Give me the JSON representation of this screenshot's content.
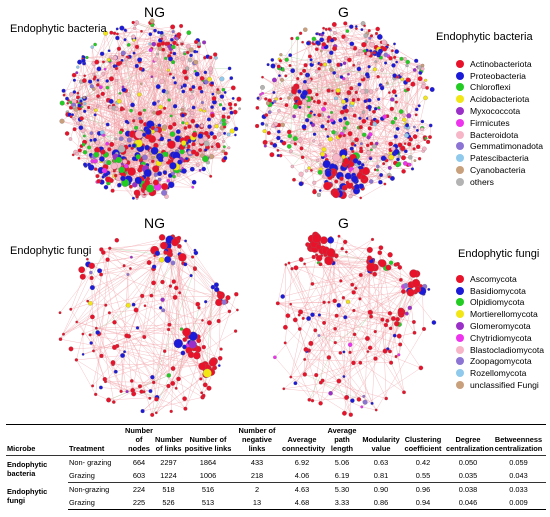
{
  "panels": {
    "bacteria": {
      "section_label": "Endophytic bacteria",
      "left_title": "NG",
      "right_title": "G",
      "legend_items": [
        {
          "label": "Actinobacteriota",
          "color": "#e8132a"
        },
        {
          "label": "Proteobacteria",
          "color": "#1a1ad8"
        },
        {
          "label": "Chloroflexi",
          "color": "#22cc22"
        },
        {
          "label": "Acidobacteriota",
          "color": "#f2e614"
        },
        {
          "label": "Myxococcota",
          "color": "#9b30c8"
        },
        {
          "label": "Firmicutes",
          "color": "#ee33ee"
        },
        {
          "label": "Bacteroidota",
          "color": "#f7b6c8"
        },
        {
          "label": "Gemmatimonadota",
          "color": "#8c74d4"
        },
        {
          "label": "Patescibacteria",
          "color": "#8fc9ec"
        },
        {
          "label": "Cyanobacteria",
          "color": "#c9a07c"
        },
        {
          "label": "others",
          "color": "#b3b3b3"
        }
      ]
    },
    "fungi": {
      "section_label": "Endophytic fungi",
      "left_title": "NG",
      "right_title": "G",
      "legend_items": [
        {
          "label": "Ascomycota",
          "color": "#e8132a"
        },
        {
          "label": "Basidiomycota",
          "color": "#1a1ad8"
        },
        {
          "label": "Olpidiomycota",
          "color": "#22cc22"
        },
        {
          "label": "Mortierellomycota",
          "color": "#f2e614"
        },
        {
          "label": "Glomeromycota",
          "color": "#9b30c8"
        },
        {
          "label": "Chytridiomycota",
          "color": "#ee33ee"
        },
        {
          "label": "Blastocladiomycota",
          "color": "#f7b6c8"
        },
        {
          "label": "Zoopagomycota",
          "color": "#8c74d4"
        },
        {
          "label": "Rozellomycota",
          "color": "#8fc9ec"
        },
        {
          "label": "unclassified Fungi",
          "color": "#c9a07c"
        }
      ]
    }
  },
  "table": {
    "headers": [
      "Microbe",
      "Treatment",
      "Number of nodes",
      "Number of links",
      "Number of positive links",
      "Number of negative links",
      "Average connectivity",
      "Average path length",
      "Modularity value",
      "Clustering coefficient",
      "Degree centralization",
      "Betweenness centralization"
    ],
    "groups": [
      {
        "microbe": "Endophytic bacteria",
        "rows": [
          {
            "treatment": "Non- grazing",
            "values": [
              "664",
              "2297",
              "1864",
              "433",
              "6.92",
              "5.06",
              "0.63",
              "0.42",
              "0.050",
              "0.059"
            ]
          },
          {
            "treatment": "Grazing",
            "values": [
              "603",
              "1224",
              "1006",
              "218",
              "4.06",
              "6.19",
              "0.81",
              "0.55",
              "0.035",
              "0.043"
            ]
          }
        ]
      },
      {
        "microbe": "Endophytic fungi",
        "rows": [
          {
            "treatment": "Non-grazing",
            "values": [
              "224",
              "518",
              "516",
              "2",
              "4.63",
              "5.30",
              "0.90",
              "0.96",
              "0.038",
              "0.033"
            ]
          },
          {
            "treatment": "Grazing",
            "values": [
              "225",
              "526",
              "513",
              "13",
              "4.68",
              "3.33",
              "0.86",
              "0.94",
              "0.046",
              "0.009"
            ]
          }
        ]
      }
    ]
  }
}
